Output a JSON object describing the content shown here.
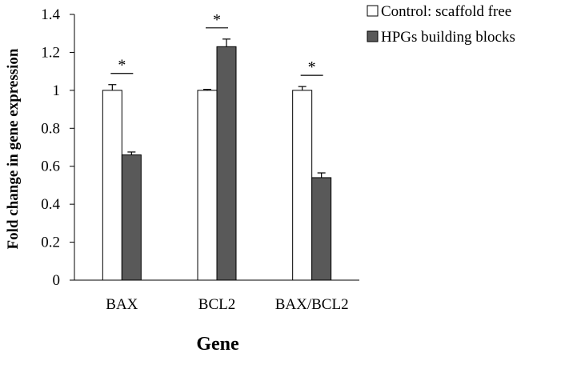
{
  "chart_data": {
    "type": "bar",
    "title": "",
    "xlabel": "Gene",
    "ylabel": "Fold change in gene expression",
    "categories": [
      "BAX",
      "BCL2",
      "BAX/BCL2"
    ],
    "ylim": [
      0,
      1.4
    ],
    "yticks": [
      0,
      0.2,
      0.4,
      0.6,
      0.8,
      1,
      1.2,
      1.4
    ],
    "ytick_labels": [
      "0",
      "0.2",
      "0.4",
      "0.6",
      "0.8",
      "1",
      "1.2",
      "1.4"
    ],
    "series": [
      {
        "name": "Control: scaffold free",
        "values": [
          1.0,
          1.0,
          1.0
        ],
        "errors": [
          0.03,
          0.005,
          0.02
        ],
        "fill": "#ffffff"
      },
      {
        "name": "HPGs building blocks",
        "values": [
          0.66,
          1.23,
          0.54
        ],
        "errors": [
          0.015,
          0.04,
          0.025
        ],
        "fill": "#595959"
      }
    ],
    "significance": [
      "*",
      "*",
      "*"
    ],
    "legend_position": "top-right",
    "grid": false
  }
}
